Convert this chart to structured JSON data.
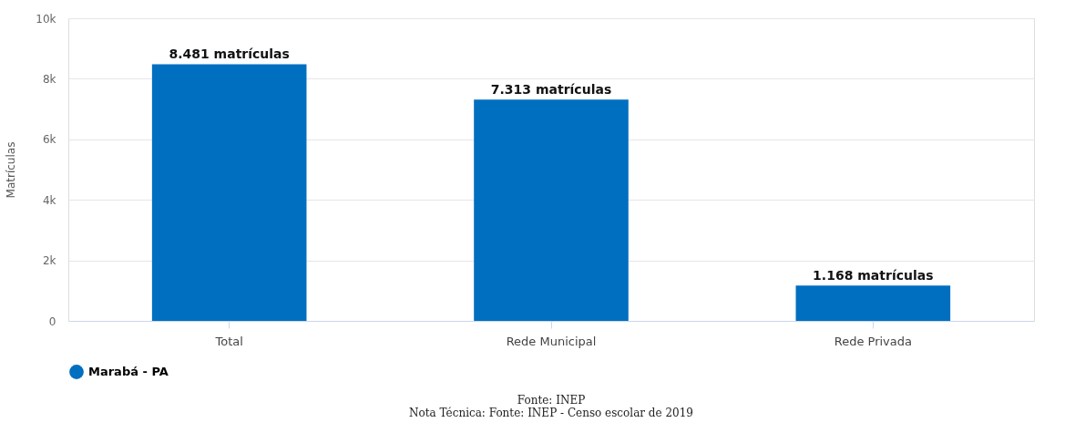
{
  "chart_data": {
    "type": "bar",
    "ylabel": "Matrículas",
    "categories": [
      "Total",
      "Rede Municipal",
      "Rede Privada"
    ],
    "series": [
      {
        "name": "Marabá - PA",
        "color": "#006fc0",
        "values": [
          8481,
          7313,
          1168
        ],
        "value_labels": [
          "8.481 matrículas",
          "7.313 matrículas",
          "1.168 matrículas"
        ]
      }
    ],
    "ylim": [
      0,
      10000
    ],
    "yticks": [
      0,
      {
        "value": 2000,
        "label": "2k"
      },
      {
        "value": 4000,
        "label": "4k"
      },
      {
        "value": 6000,
        "label": "6k"
      },
      {
        "value": 8000,
        "label": "8k"
      },
      {
        "value": 10000,
        "label": "10k"
      }
    ],
    "grid": "y",
    "legend": "bottom",
    "annotations": [
      "Fonte: INEP",
      "Nota Técnica: Fonte: INEP - Censo escolar de 2019"
    ]
  }
}
